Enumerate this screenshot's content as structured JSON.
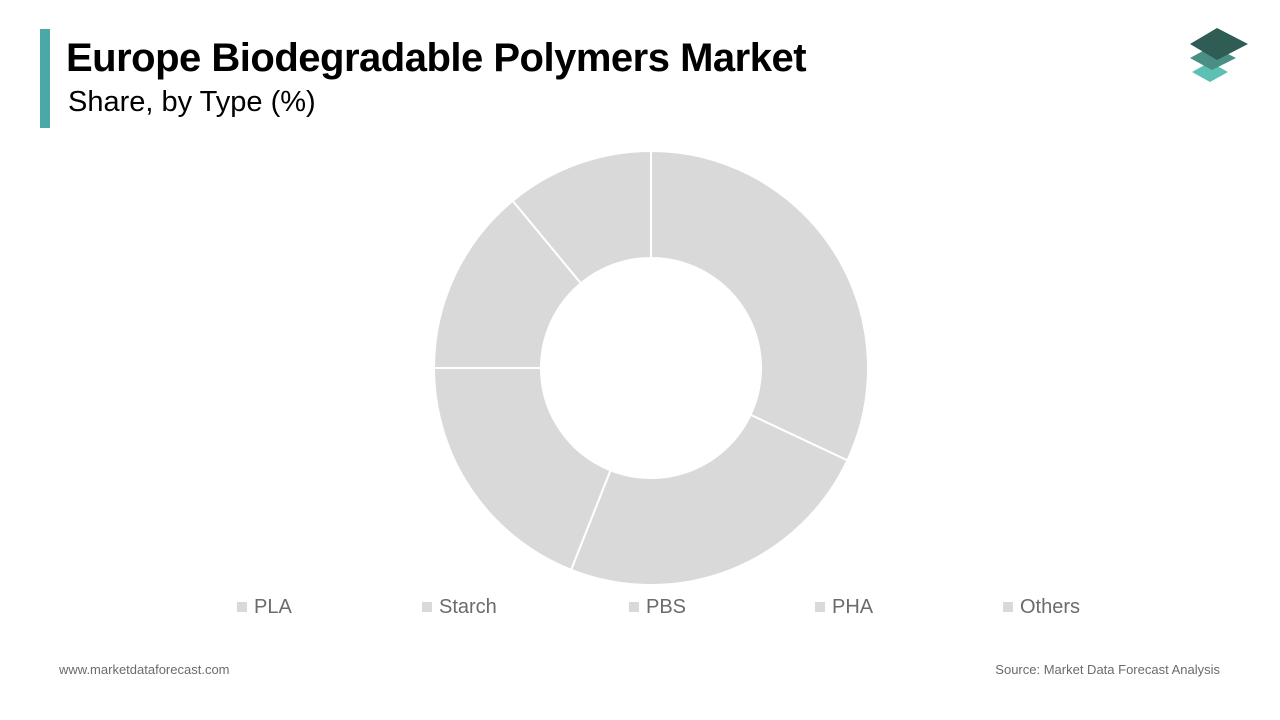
{
  "header": {
    "title": "Europe Biodegradable Polymers Market",
    "subtitle": "Share, by Type (%)",
    "accent_color": "#4aa8a6",
    "logo_icon": "stacked-layers-logo-icon"
  },
  "chart_data": {
    "type": "pie",
    "style": "donut",
    "title": "Europe Biodegradable Polymers Market",
    "subtitle": "Share, by Type (%)",
    "categories": [
      "PLA",
      "Starch",
      "PBS",
      "PHA",
      "Others"
    ],
    "values": [
      32,
      24,
      19,
      14,
      11
    ],
    "slice_color": "#d9d9d9",
    "separator_color": "#ffffff",
    "start_angle_deg": 0,
    "direction": "clockwise",
    "legend": "bottom",
    "data_labels": false
  },
  "legend": {
    "swatch_color": "#d9d9d9",
    "items": [
      "PLA",
      "Starch",
      "PBS",
      "PHA",
      "Others"
    ]
  },
  "footer": {
    "website": "www.marketdataforecast.com",
    "source": "Source: Market Data Forecast Analysis"
  }
}
